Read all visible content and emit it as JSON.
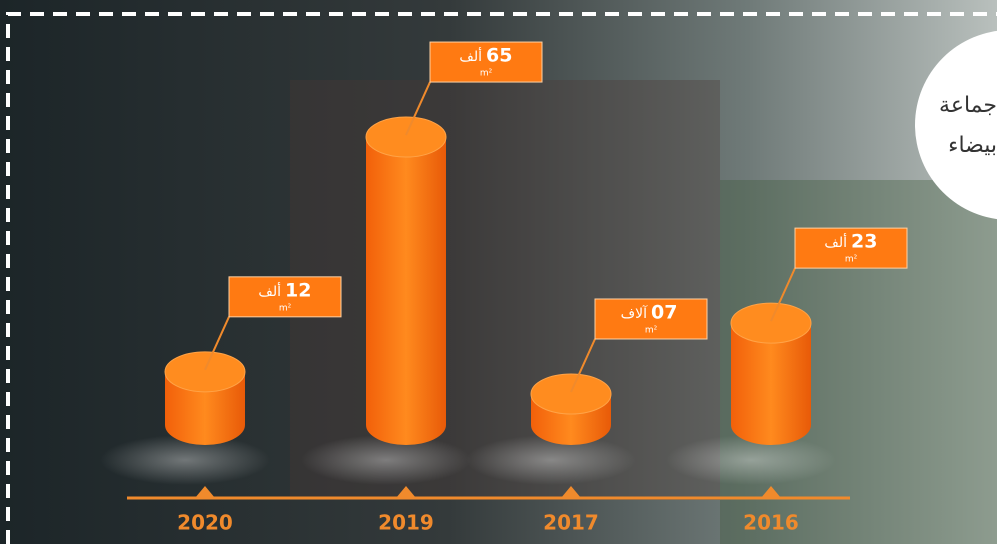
{
  "chart_data": {
    "type": "bar",
    "categories": [
      "2020",
      "2019",
      "2017",
      "2016"
    ],
    "values": [
      12,
      65,
      7,
      23
    ],
    "value_labels": [
      "12",
      "65",
      "07",
      "23"
    ],
    "unit_labels": [
      "ألف",
      "ألف",
      "آلاف",
      "ألف"
    ],
    "area_unit": "m²",
    "color": "#ff7a12",
    "badge_lines": [
      "جماعة",
      "بيضاء"
    ]
  }
}
